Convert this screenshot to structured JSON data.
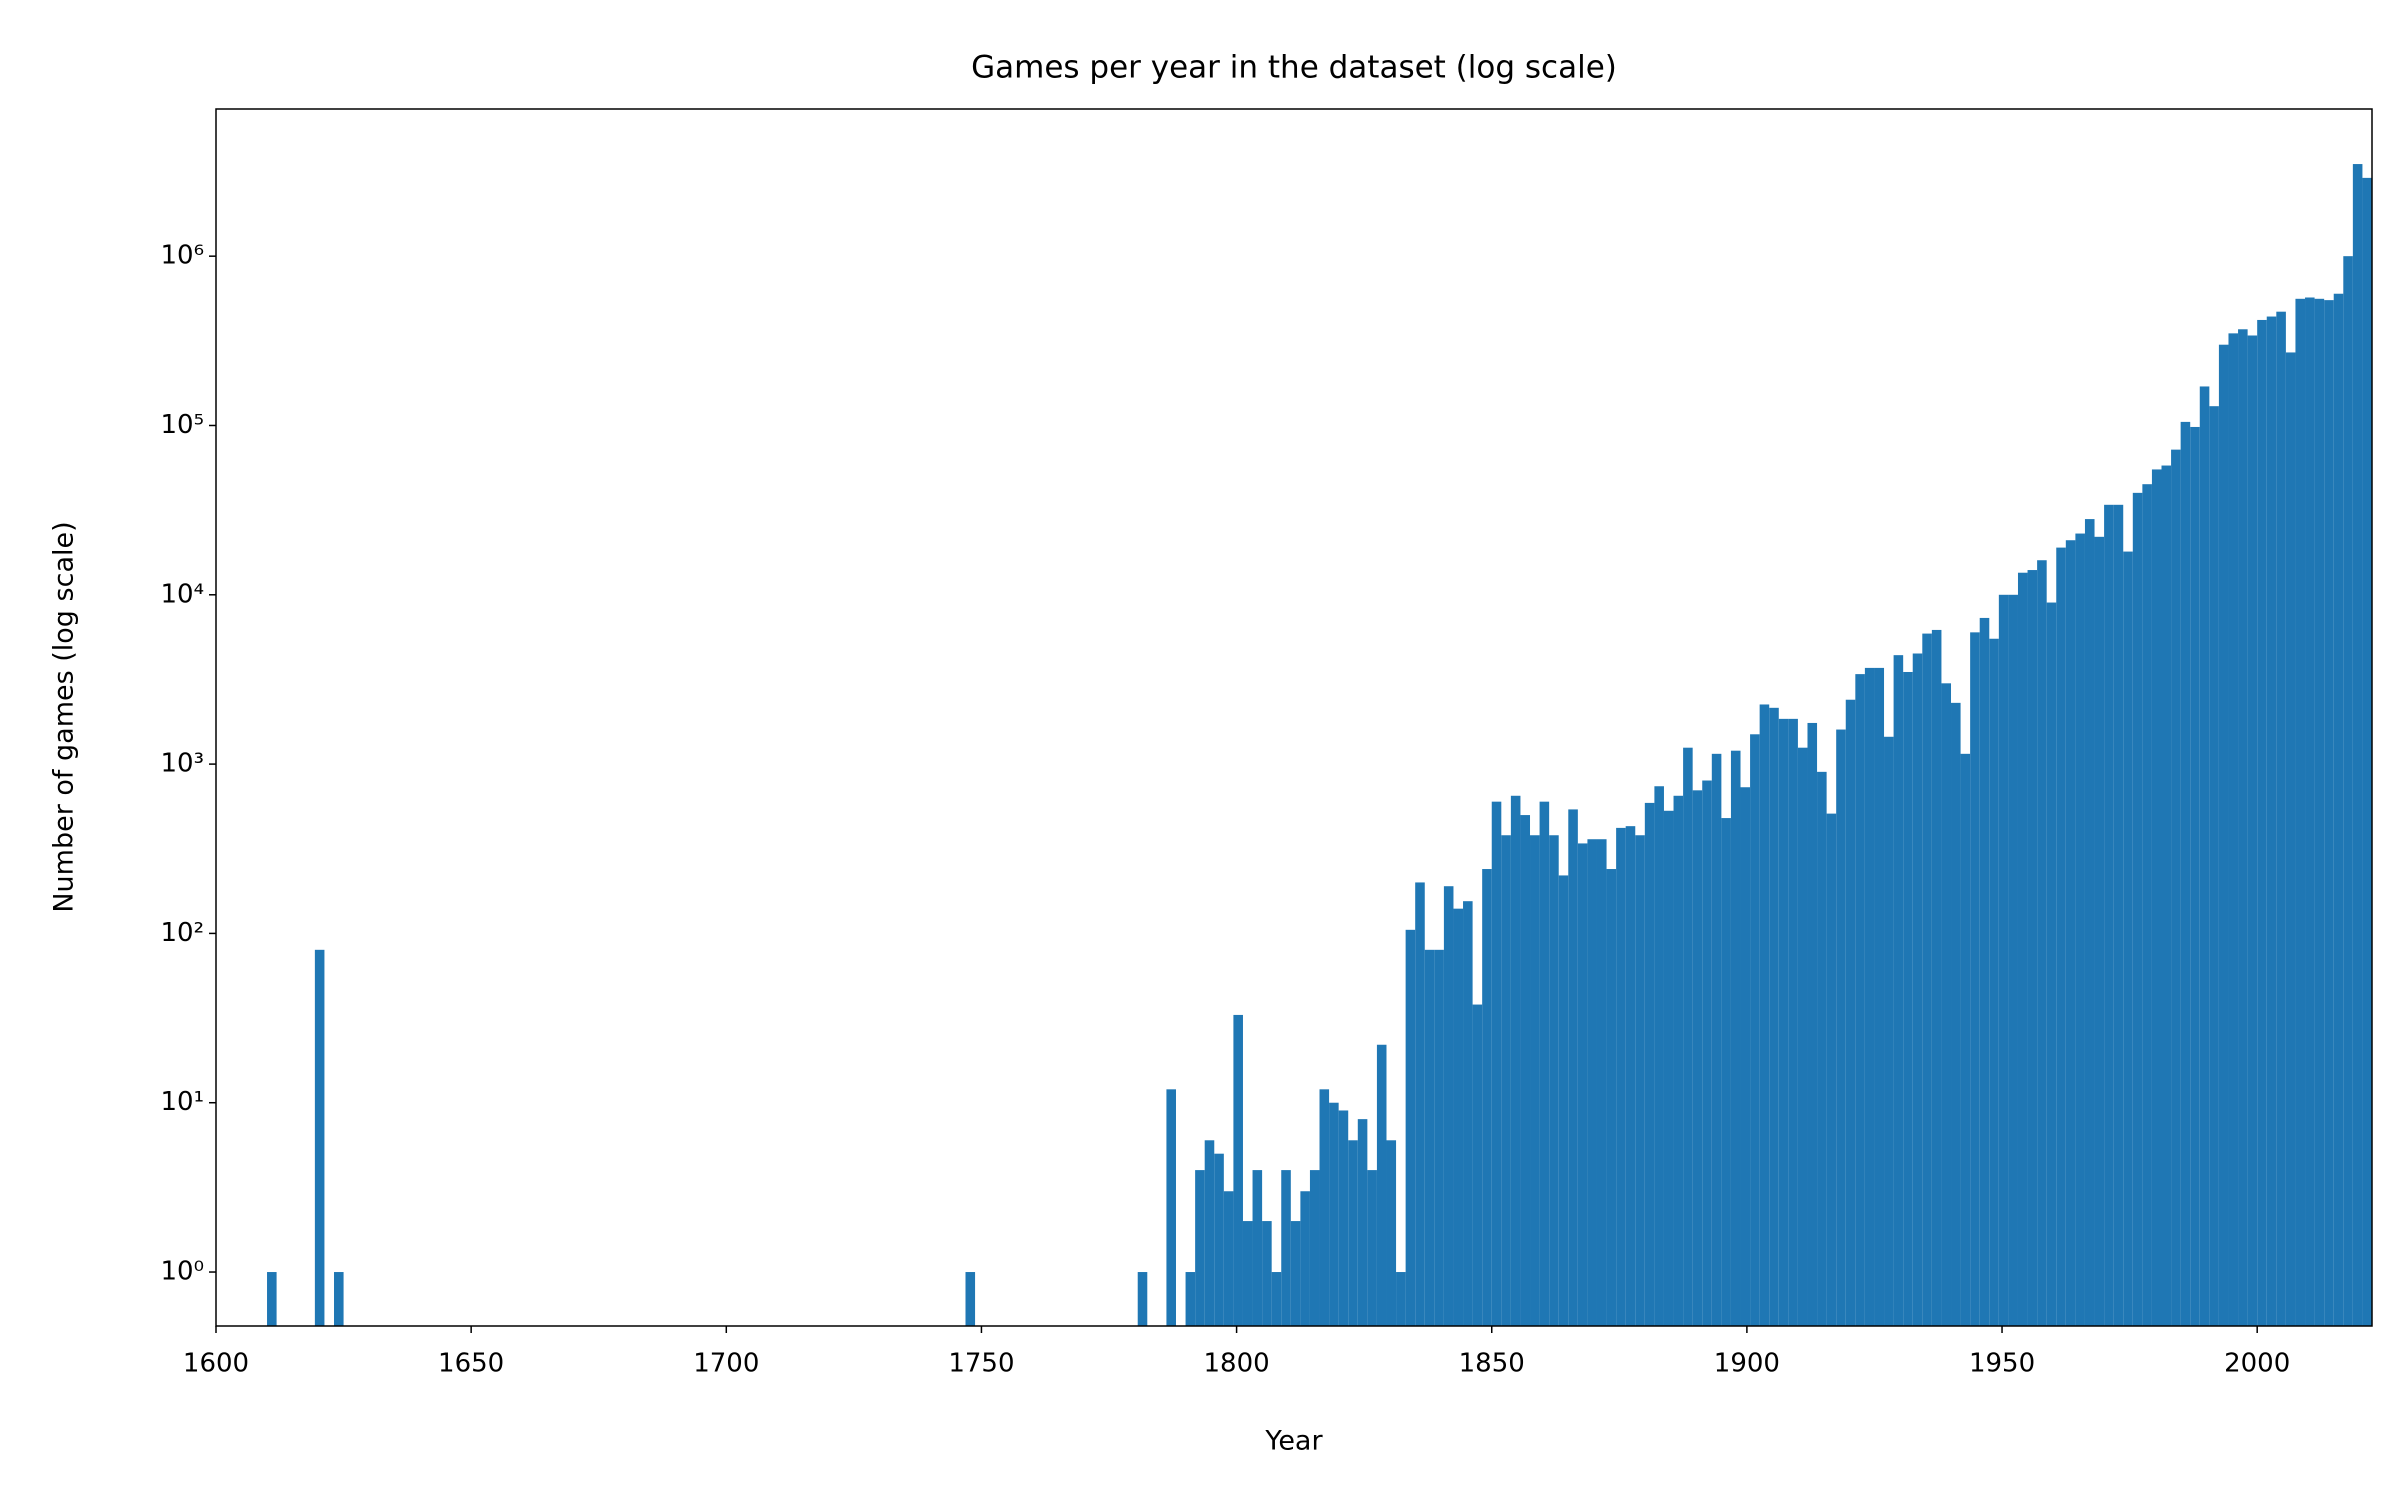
{
  "chart_data": {
    "type": "histogram",
    "title": "Games per year in the dataset (log scale)",
    "x_label": "Year",
    "y_label": "Number of games (log scale)",
    "color": "#1f77b4",
    "y_scale": "log",
    "bins": [
      1610,
      1611.875,
      1613.75,
      1615.625,
      1617.5,
      1619.375,
      1621.25,
      1623.125,
      1625,
      1626.875,
      1628.75,
      1630.625,
      1632.5,
      1634.375,
      1636.25,
      1638.125,
      1640,
      1641.875,
      1643.75,
      1645.625,
      1647.5,
      1649.375,
      1651.25,
      1653.125,
      1655,
      1656.875,
      1658.75,
      1660.625,
      1662.5,
      1664.375,
      1666.25,
      1668.125,
      1670,
      1671.875,
      1673.75,
      1675.625,
      1677.5,
      1679.375,
      1681.25,
      1683.125,
      1685,
      1686.875,
      1688.75,
      1690.625,
      1692.5,
      1694.375,
      1696.25,
      1698.125,
      1700,
      1701.875,
      1703.75,
      1705.625,
      1707.5,
      1709.375,
      1711.25,
      1713.125,
      1715,
      1716.875,
      1718.75,
      1720.625,
      1722.5,
      1724.375,
      1726.25,
      1728.125,
      1730,
      1731.875,
      1733.75,
      1735.625,
      1737.5,
      1739.375,
      1741.25,
      1743.125,
      1745,
      1746.875,
      1748.75,
      1750.625,
      1752.5,
      1754.375,
      1756.25,
      1758.125,
      1760,
      1761.875,
      1763.75,
      1765.625,
      1767.5,
      1769.375,
      1771.25,
      1773.125,
      1775,
      1776.875,
      1778.75,
      1780.625,
      1782.5,
      1784.375,
      1786.25,
      1788.125,
      1790,
      1791.875,
      1793.75,
      1795.625,
      1797.5,
      1799.375,
      1801.25,
      1803.125,
      1805,
      1806.875,
      1808.75,
      1810.625,
      1812.5,
      1814.375,
      1816.25,
      1818.125,
      1820,
      1821.875,
      1823.75,
      1825.625,
      1827.5,
      1829.375,
      1831.25,
      1833.125,
      1835,
      1836.875,
      1838.75,
      1840.625,
      1842.5,
      1844.375,
      1846.25,
      1848.125,
      1850,
      1851.875,
      1853.75,
      1855.625,
      1857.5,
      1859.375,
      1861.25,
      1863.125,
      1865,
      1866.875,
      1868.75,
      1870.625,
      1872.5,
      1874.375,
      1876.25,
      1878.125,
      1880,
      1881.875,
      1883.75,
      1885.625,
      1887.5,
      1889.375,
      1891.25,
      1893.125,
      1895,
      1896.875,
      1898.75,
      1900.625,
      1902.5,
      1904.375,
      1906.25,
      1908.125,
      1910,
      1911.875,
      1913.75,
      1915.625,
      1917.5,
      1919.375,
      1921.25,
      1923.125,
      1925,
      1926.875,
      1928.75,
      1930.625,
      1932.5,
      1934.375,
      1936.25,
      1938.125,
      1940,
      1941.875,
      1943.75,
      1945.625,
      1947.5,
      1949.375,
      1951.25,
      1953.125,
      1955,
      1956.875,
      1958.75,
      1960.625,
      1962.5,
      1964.375,
      1966.25,
      1968.125,
      1970,
      1971.875,
      1973.75,
      1975.625,
      1977.5,
      1979.375,
      1981.25,
      1983.125,
      1985,
      1986.875,
      1988.75,
      1990.625,
      1992.5,
      1994.375,
      1996.25,
      1998.125,
      2000,
      2001.875,
      2003.75,
      2005.625,
      2007.5,
      2009.375,
      2011.25,
      2013.125,
      2015,
      2016.875,
      2018.75,
      2020.625,
      2022.5
    ],
    "values": [
      1,
      0,
      0,
      0,
      0,
      80,
      0,
      1,
      0,
      0,
      0,
      0,
      0,
      0,
      0,
      0,
      0,
      0,
      0,
      0,
      0,
      0,
      0,
      0,
      0,
      0,
      0,
      0,
      0,
      0,
      0,
      0,
      0,
      0,
      0,
      0,
      0,
      0,
      0,
      0,
      0,
      0,
      0,
      0,
      0,
      0,
      0,
      0,
      0,
      0,
      0,
      0,
      0,
      0,
      0,
      0,
      0,
      0,
      0,
      0,
      0,
      0,
      0,
      0,
      0,
      0,
      0,
      0,
      0,
      0,
      0,
      0,
      0,
      1,
      0,
      0,
      0,
      0,
      0,
      0,
      0,
      0,
      0,
      0,
      0,
      0,
      0,
      0,
      0,
      0,
      0,
      1,
      0,
      0,
      12,
      0,
      1,
      4,
      6,
      5,
      3,
      33,
      2,
      4,
      2,
      1,
      4,
      2,
      3,
      4,
      12,
      10,
      9,
      6,
      8,
      4,
      22,
      6,
      1,
      105,
      200,
      80,
      80,
      190,
      140,
      155,
      38,
      240,
      600,
      380,
      650,
      500,
      380,
      600,
      380,
      220,
      540,
      340,
      360,
      360,
      240,
      420,
      430,
      380,
      590,
      740,
      530,
      650,
      1250,
      700,
      800,
      1150,
      480,
      1200,
      730,
      1500,
      2250,
      2150,
      1850,
      1850,
      1250,
      1750,
      900,
      510,
      1600,
      2400,
      3400,
      3700,
      3700,
      1450,
      4400,
      3500,
      4500,
      5900,
      6200,
      3000,
      2300,
      1150,
      6000,
      7300,
      5500,
      10000,
      10000,
      13500,
      14000,
      16000,
      9000,
      19000,
      21000,
      23000,
      28000,
      22000,
      34000,
      34000,
      18000,
      40000,
      45000,
      55000,
      58000,
      72000,
      105000,
      98000,
      170000,
      130000,
      300000,
      350000,
      370000,
      340000,
      420000,
      440000,
      470000,
      270000,
      560000,
      570000,
      560000,
      550000,
      600000,
      1000000,
      3500000,
      2900000
    ],
    "xlim": [
      1600,
      2022.5
    ],
    "xticks": [
      1600,
      1650,
      1700,
      1750,
      1800,
      1850,
      1900,
      1950,
      2000
    ],
    "ylim": [
      0.48,
      7400000
    ],
    "yticks": [
      {
        "value": 1,
        "label": "10⁰"
      },
      {
        "value": 10,
        "label": "10¹"
      },
      {
        "value": 100,
        "label": "10²"
      },
      {
        "value": 1000,
        "label": "10³"
      },
      {
        "value": 10000,
        "label": "10⁴"
      },
      {
        "value": 100000,
        "label": "10⁵"
      },
      {
        "value": 1000000,
        "label": "10⁶"
      }
    ]
  }
}
